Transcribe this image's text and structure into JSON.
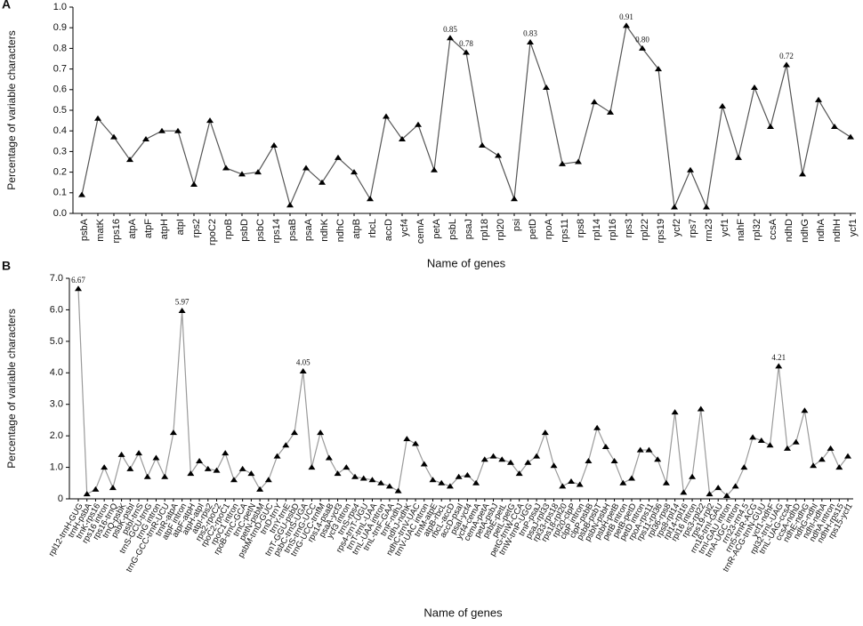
{
  "chart_data": [
    {
      "type": "line",
      "panel_label": "A",
      "ylabel": "Percentage of variable characters",
      "xlabel": "Name of genes",
      "categories": [
        "psbA",
        "matK",
        "rps16",
        "atpA",
        "atpF",
        "atpH",
        "atpI",
        "rps2",
        "rpoC2",
        "rpoB",
        "psbD",
        "psbC",
        "rps14",
        "psaB",
        "psaA",
        "ndhK",
        "ndhC",
        "atpB",
        "rbcL",
        "accD",
        "ycf4",
        "cemA",
        "petA",
        "psbL",
        "psaJ",
        "rpl18",
        "rpl20",
        "psi",
        "petD",
        "rpoA",
        "rps11",
        "rps8",
        "rpl14",
        "rpl16",
        "rps3",
        "rpl22",
        "rps19",
        "ycf2",
        "rps7",
        "rrn23",
        "ycf1",
        "nahF",
        "rpl32",
        "ccsA",
        "ndhD",
        "ndhG",
        "ndhA",
        "ndhH",
        "ycf1"
      ],
      "values": [
        0.09,
        0.46,
        0.37,
        0.26,
        0.36,
        0.4,
        0.4,
        0.14,
        0.45,
        0.22,
        0.19,
        0.2,
        0.33,
        0.04,
        0.22,
        0.15,
        0.27,
        0.2,
        0.07,
        0.47,
        0.36,
        0.43,
        0.21,
        0.85,
        0.78,
        0.33,
        0.28,
        0.07,
        0.83,
        0.61,
        0.24,
        0.25,
        0.54,
        0.49,
        0.91,
        0.8,
        0.7,
        0.03,
        0.21,
        0.03,
        0.52,
        0.27,
        0.61,
        0.42,
        0.72,
        0.19,
        0.55,
        0.42,
        0.37
      ],
      "value_labels": [
        null,
        null,
        null,
        null,
        null,
        null,
        null,
        null,
        null,
        null,
        null,
        null,
        null,
        null,
        null,
        null,
        null,
        null,
        null,
        null,
        null,
        null,
        null,
        "0.85",
        "0.78",
        null,
        null,
        null,
        "0.83",
        null,
        null,
        null,
        null,
        null,
        "0.91",
        "0.80",
        null,
        null,
        null,
        null,
        null,
        null,
        null,
        null,
        "0.72",
        null,
        null,
        null,
        null
      ],
      "color": "#555555",
      "marker_color": "#000000",
      "ylim": [
        0,
        1.0
      ],
      "yticks": [
        {
          "value": 0,
          "label": "0.0"
        },
        0.1,
        0.2,
        0.3,
        0.4,
        0.5,
        0.6,
        0.7,
        0.8,
        0.9,
        {
          "value": 1.0,
          "label": "1.0"
        }
      ]
    },
    {
      "type": "line",
      "panel_label": "B",
      "ylabel": "Percentage of variable characters",
      "xlabel": "Name of genes",
      "categories": [
        "rpl12-trnH-GUG",
        "trnH-psbA",
        "trnK-rps16",
        "rps16 intron",
        "rps16-trnQ",
        "trnQ-psbK",
        "psbK-psbI",
        "psbI-trnS",
        "trnS-GCU-trnG",
        "trnG intron",
        "trnG-GCC-trnR-UCU",
        "trnR-atpA",
        "atpF intron",
        "atpF-atpH",
        "atpH-atpI",
        "atpI-rps2",
        "rps2-rpoC2",
        "rpoC2-rpoC1",
        "rpoC1 intron",
        "rpoB-trnC-GCA",
        "trnC-petN",
        "petN-psbM",
        "psbM-trnD-GUC",
        "trnD-trnY",
        "trnY-trnE",
        "trnT-GGU-psbD",
        "psbC-trnS-UGA",
        "trnS-trnG-UCC",
        "trnG-UCC-trnfM",
        "rps14-psaB",
        "psaA-ycf3",
        "ycf3 intron",
        "trnS-rps4",
        "rps4-trnT-UGU",
        "trnT-trnL-UAA",
        "trnL-UAA intron",
        "trnL-trnF-GAA",
        "trnF-ndhJ",
        "ndhJ-ndhK",
        "ndhC-trnV-UAC",
        "trnV-UAC intron",
        "trnM-atpE",
        "atpB-rbcL",
        "rbcL-accD",
        "accD-psaI",
        "psaI-ycf4",
        "ycf4-cemA",
        "cemA-petA",
        "petA-psbJ",
        "psbE-petL",
        "petL-petG",
        "petG-trnW-CCA",
        "trnW-trnP-UGG",
        "trnP-psaJ",
        "psaJ-rpl33",
        "rpl33-rps18",
        "rps18-rpl20",
        "rpl20-clpP",
        "clpP intron",
        "clpP-psbB",
        "psbB-psbT",
        "psbN-psbH",
        "psbH-petB",
        "petB intron",
        "petB-petD",
        "petD intron",
        "rpoA-rps11",
        "rps11-rpl36",
        "rpl36-rps8",
        "rps8-rpl14",
        "rpl14-rpl16",
        "rpl16 intron",
        "rps3-rpl22",
        "rps19-rpl2",
        "rrn16-trnI-GAU",
        "trnI-GAU intron",
        "trnA-UGC intron",
        "rrn23-rrn4.5",
        "rrn5-trnR-ACG",
        "trnR-ACG-trnN-GUU",
        "ycf1-ndhF",
        "rpl32-trnL-UAG",
        "trnL-UAG-ccsA",
        "ccsA-ndhD",
        "ndhE-ndhG",
        "ndhG-ndhI",
        "ndhI-ndhA",
        "ndhA intron",
        "ndhH-rps15",
        "rps15-ycf1"
      ],
      "values": [
        6.67,
        0.15,
        0.3,
        1.0,
        0.35,
        1.4,
        0.95,
        1.45,
        0.7,
        1.3,
        0.7,
        2.1,
        5.97,
        0.8,
        1.2,
        0.95,
        0.9,
        1.45,
        0.6,
        0.95,
        0.8,
        0.3,
        0.6,
        1.35,
        1.7,
        2.1,
        4.05,
        1.0,
        2.1,
        1.3,
        0.8,
        1.0,
        0.7,
        0.65,
        0.6,
        0.5,
        0.4,
        0.25,
        1.9,
        1.75,
        1.1,
        0.6,
        0.5,
        0.4,
        0.7,
        0.75,
        0.5,
        1.25,
        1.35,
        1.25,
        1.15,
        0.8,
        1.15,
        1.35,
        2.1,
        1.05,
        0.4,
        0.55,
        0.45,
        1.2,
        2.25,
        1.65,
        1.2,
        0.5,
        0.65,
        1.55,
        1.55,
        1.25,
        0.5,
        2.75,
        0.2,
        0.7,
        2.85,
        0.15,
        0.35,
        0.1,
        0.4,
        1.0,
        1.95,
        1.85,
        1.7,
        4.21,
        1.6,
        1.8,
        2.8,
        1.05,
        1.25,
        1.6,
        1.0,
        1.35
      ],
      "value_labels": [
        "6.67",
        null,
        null,
        null,
        null,
        null,
        null,
        null,
        null,
        null,
        null,
        null,
        "5.97",
        null,
        null,
        null,
        null,
        null,
        null,
        null,
        null,
        null,
        null,
        null,
        null,
        null,
        "4.05",
        null,
        null,
        null,
        null,
        null,
        null,
        null,
        null,
        null,
        null,
        null,
        null,
        null,
        null,
        null,
        null,
        null,
        null,
        null,
        null,
        null,
        null,
        null,
        null,
        null,
        null,
        null,
        null,
        null,
        null,
        null,
        null,
        null,
        null,
        null,
        null,
        null,
        null,
        null,
        null,
        null,
        null,
        null,
        null,
        null,
        null,
        null,
        null,
        null,
        null,
        null,
        null,
        null,
        null,
        "4.21",
        null,
        null,
        null,
        null,
        null,
        null,
        null,
        null
      ],
      "color": "#9a9a9a",
      "marker_color": "#000000",
      "ylim": [
        0,
        7.0
      ],
      "yticks": [
        0,
        {
          "value": 1.0,
          "label": "1.0"
        },
        {
          "value": 2.0,
          "label": "2.0"
        },
        {
          "value": 3.0,
          "label": "3.0"
        },
        {
          "value": 4.0,
          "label": "4.0"
        },
        {
          "value": 5.0,
          "label": "5.0"
        },
        {
          "value": 6.0,
          "label": "6.0"
        },
        {
          "value": 7.0,
          "label": "7.0"
        }
      ]
    }
  ]
}
